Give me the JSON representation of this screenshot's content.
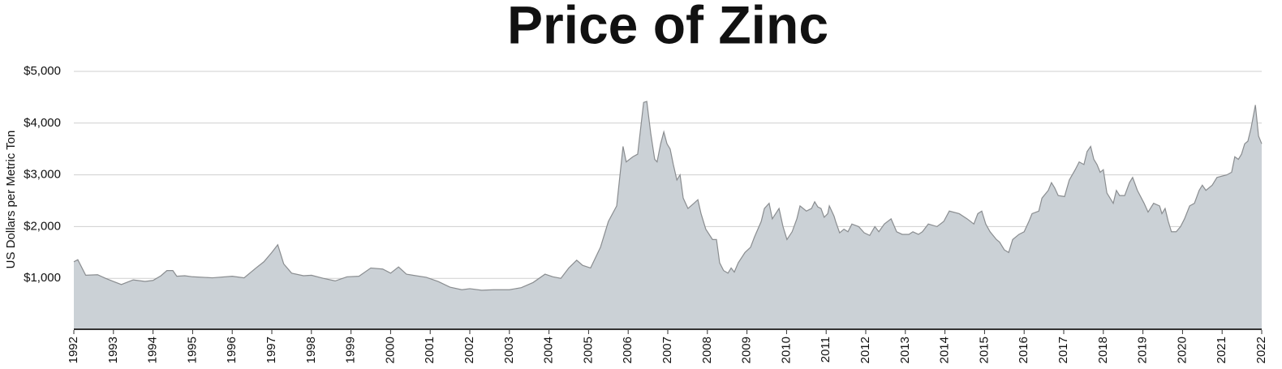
{
  "chart_data": {
    "type": "area",
    "title": "Price of Zinc",
    "y_label": "US Dollars per Metric Ton",
    "color": "#cbd1d6",
    "line_color": "#8a8d90",
    "grid": true,
    "xlim": [
      1992,
      2022
    ],
    "xticks": [
      1992,
      1993,
      1994,
      1995,
      1996,
      1997,
      1998,
      1999,
      2000,
      2001,
      2002,
      2003,
      2004,
      2005,
      2006,
      2007,
      2008,
      2009,
      2010,
      2011,
      2012,
      2013,
      2014,
      2015,
      2016,
      2017,
      2018,
      2019,
      2020,
      2021,
      2022
    ],
    "ylim": [
      0,
      5000
    ],
    "yticks": [
      {
        "value": 1000,
        "label": "$1,000"
      },
      {
        "value": 2000,
        "label": "$2,000"
      },
      {
        "value": 3000,
        "label": "$3,000"
      },
      {
        "value": 4000,
        "label": "$4,000"
      },
      {
        "value": 5000,
        "label": "$5,000"
      }
    ],
    "x": [
      1992.0,
      1992.1,
      1992.3,
      1992.6,
      1992.8,
      1993.0,
      1993.2,
      1993.5,
      1993.8,
      1994.0,
      1994.2,
      1994.35,
      1994.5,
      1994.6,
      1994.8,
      1995.0,
      1995.5,
      1996.0,
      1996.3,
      1996.6,
      1996.8,
      1997.0,
      1997.15,
      1997.3,
      1997.5,
      1997.8,
      1998.0,
      1998.3,
      1998.6,
      1998.9,
      1999.2,
      1999.5,
      1999.8,
      2000.0,
      2000.2,
      2000.4,
      2000.9,
      2001.2,
      2001.5,
      2001.8,
      2002.0,
      2002.3,
      2002.6,
      2003.0,
      2003.3,
      2003.6,
      2003.9,
      2004.1,
      2004.3,
      2004.5,
      2004.7,
      2004.85,
      2005.05,
      2005.3,
      2005.5,
      2005.71,
      2005.87,
      2005.95,
      2006.12,
      2006.24,
      2006.3,
      2006.39,
      2006.47,
      2006.57,
      2006.67,
      2006.73,
      2006.82,
      2006.9,
      2006.98,
      2007.06,
      2007.14,
      2007.23,
      2007.31,
      2007.39,
      2007.51,
      2007.66,
      2007.76,
      2007.84,
      2007.96,
      2008.13,
      2008.23,
      2008.31,
      2008.41,
      2008.52,
      2008.6,
      2008.68,
      2008.78,
      2008.95,
      2009.09,
      2009.19,
      2009.36,
      2009.44,
      2009.56,
      2009.64,
      2009.81,
      2009.91,
      2010.01,
      2010.14,
      2010.26,
      2010.34,
      2010.5,
      2010.63,
      2010.71,
      2010.79,
      2010.87,
      2010.95,
      2011.04,
      2011.08,
      2011.2,
      2011.24,
      2011.34,
      2011.45,
      2011.55,
      2011.65,
      2011.82,
      2011.96,
      2012.1,
      2012.23,
      2012.33,
      2012.47,
      2012.64,
      2012.78,
      2012.92,
      2013.09,
      2013.19,
      2013.33,
      2013.43,
      2013.58,
      2013.8,
      2013.97,
      2014.11,
      2014.36,
      2014.56,
      2014.73,
      2014.83,
      2014.93,
      2015.03,
      2015.14,
      2015.3,
      2015.38,
      2015.5,
      2015.61,
      2015.71,
      2015.87,
      2016.0,
      2016.12,
      2016.2,
      2016.37,
      2016.45,
      2016.61,
      2016.69,
      2016.77,
      2016.86,
      2017.02,
      2017.14,
      2017.29,
      2017.39,
      2017.51,
      2017.59,
      2017.68,
      2017.76,
      2017.84,
      2017.92,
      2018.0,
      2018.09,
      2018.25,
      2018.33,
      2018.41,
      2018.54,
      2018.66,
      2018.74,
      2018.86,
      2019.03,
      2019.13,
      2019.27,
      2019.42,
      2019.48,
      2019.56,
      2019.64,
      2019.72,
      2019.84,
      2019.95,
      2020.05,
      2020.18,
      2020.3,
      2020.42,
      2020.5,
      2020.59,
      2020.75,
      2020.87,
      2021.12,
      2021.24,
      2021.32,
      2021.41,
      2021.49,
      2021.57,
      2021.65,
      2021.73,
      2021.84,
      2021.92,
      2022.0
    ],
    "values": [
      1320,
      1360,
      1060,
      1070,
      1000,
      940,
      880,
      970,
      940,
      960,
      1050,
      1150,
      1150,
      1040,
      1050,
      1030,
      1010,
      1040,
      1010,
      1200,
      1320,
      1500,
      1650,
      1280,
      1100,
      1050,
      1060,
      1000,
      950,
      1030,
      1040,
      1200,
      1180,
      1100,
      1220,
      1080,
      1020,
      940,
      830,
      780,
      800,
      770,
      780,
      780,
      820,
      920,
      1080,
      1030,
      1000,
      1200,
      1350,
      1250,
      1200,
      1600,
      2100,
      2400,
      3550,
      3250,
      3350,
      3400,
      3800,
      4400,
      4420,
      3800,
      3300,
      3250,
      3600,
      3830,
      3600,
      3500,
      3200,
      2900,
      3000,
      2550,
      2350,
      2450,
      2520,
      2250,
      1950,
      1750,
      1750,
      1300,
      1150,
      1100,
      1200,
      1120,
      1300,
      1500,
      1600,
      1800,
      2100,
      2350,
      2450,
      2150,
      2350,
      2000,
      1750,
      1900,
      2150,
      2400,
      2300,
      2350,
      2480,
      2380,
      2350,
      2180,
      2250,
      2400,
      2200,
      2100,
      1880,
      1950,
      1900,
      2050,
      2000,
      1880,
      1830,
      2000,
      1900,
      2050,
      2150,
      1900,
      1850,
      1850,
      1900,
      1850,
      1900,
      2050,
      2000,
      2100,
      2300,
      2250,
      2150,
      2050,
      2250,
      2300,
      2050,
      1900,
      1750,
      1700,
      1550,
      1500,
      1750,
      1850,
      1900,
      2100,
      2250,
      2300,
      2550,
      2700,
      2850,
      2750,
      2600,
      2580,
      2900,
      3100,
      3250,
      3200,
      3450,
      3550,
      3300,
      3200,
      3050,
      3100,
      2650,
      2450,
      2700,
      2600,
      2600,
      2850,
      2950,
      2700,
      2450,
      2280,
      2450,
      2400,
      2250,
      2350,
      2100,
      1900,
      1900,
      2000,
      2150,
      2400,
      2450,
      2700,
      2800,
      2700,
      2800,
      2950,
      3000,
      3050,
      3350,
      3300,
      3400,
      3600,
      3650,
      3900,
      4350,
      3750,
      3600
    ]
  }
}
